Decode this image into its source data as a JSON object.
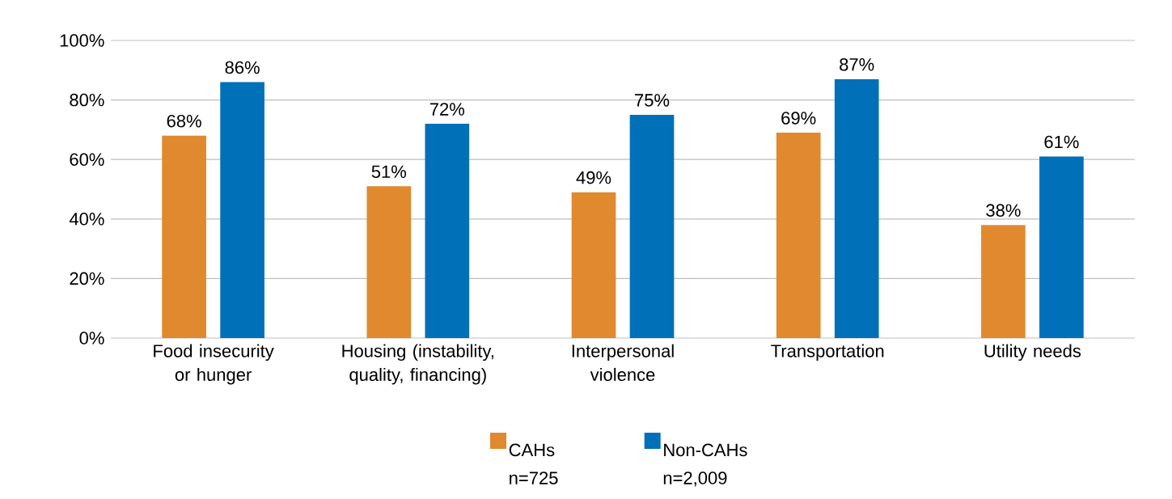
{
  "chart_data": {
    "type": "bar",
    "categories": [
      "Food insecurity or hunger",
      "Housing (instability, quality, financing)",
      "Interpersonal violence",
      "Transportation",
      "Utility needs"
    ],
    "series": [
      {
        "name": "CAHs n=725",
        "color": "#e0892e",
        "values": [
          68,
          51,
          49,
          69,
          38
        ],
        "value_labels": [
          "68%",
          "51%",
          "49%",
          "69%",
          "38%"
        ]
      },
      {
        "name": "Non-CAHs n=2,009",
        "color": "#0070b8",
        "values": [
          86,
          72,
          75,
          87,
          61
        ],
        "value_labels": [
          "86%",
          "72%",
          "75%",
          "87%",
          "61%"
        ]
      }
    ],
    "ylim": [
      0,
      100
    ],
    "yticks": [
      {
        "value": 0,
        "label": "0%"
      },
      {
        "value": 20,
        "label": "20%"
      },
      {
        "value": 40,
        "label": "40%"
      },
      {
        "value": 60,
        "label": "60%"
      },
      {
        "value": 80,
        "label": "80%"
      },
      {
        "value": 100,
        "label": "100%"
      }
    ],
    "grid": "y",
    "legend": "bottom"
  }
}
